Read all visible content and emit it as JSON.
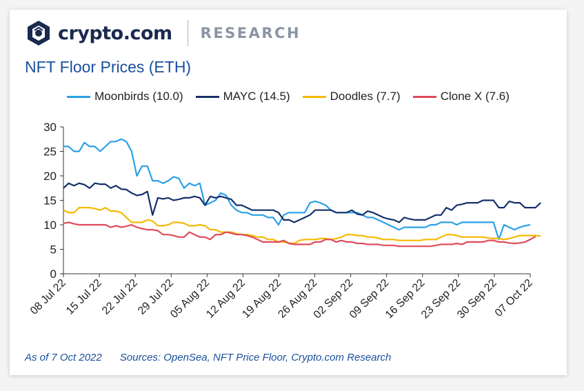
{
  "brand": {
    "name": "crypto.com",
    "division": "RESEARCH",
    "logo_icon": "lion-shield-icon"
  },
  "footer": {
    "as_of": "As of 7 Oct 2022",
    "sources": "Sources: OpenSea, NFT Price Floor, Crypto.com Research"
  },
  "chart_data": {
    "type": "line",
    "title": "NFT Floor Prices (ETH)",
    "xlabel": "",
    "ylabel": "",
    "ylim": [
      0,
      30
    ],
    "yticks": [
      0,
      5,
      10,
      15,
      20,
      25,
      30
    ],
    "grid": false,
    "legend_position": "top",
    "x_start": "08 Jul 22",
    "x_end": "07 Oct 22",
    "x_tick_labels": [
      "08 Jul 22",
      "15 Jul 22",
      "22 Jul 22",
      "29 Jul 22",
      "05 Aug 22",
      "12 Aug 22",
      "19 Aug 22",
      "26 Aug 22",
      "02 Sep 22",
      "09 Sep 22",
      "16 Sep 22",
      "23 Sep 22",
      "30 Sep 22",
      "07 Oct 22"
    ],
    "series": [
      {
        "name": "Moonbirds (10.0)",
        "color": "#2aa1e8",
        "values": [
          26,
          26,
          25,
          25,
          26.8,
          26,
          26,
          25,
          26,
          27,
          27,
          27.5,
          27,
          25,
          20,
          22,
          22,
          19,
          19,
          18.5,
          19,
          19.8,
          19.5,
          17.5,
          18.5,
          18,
          18.5,
          14,
          14.5,
          15,
          16.5,
          16,
          14,
          13,
          12.5,
          12.5,
          12,
          12,
          12,
          11.5,
          11.5,
          10,
          12,
          12.5,
          12.5,
          12.5,
          12.5,
          14.5,
          14.8,
          14.5,
          14,
          13,
          12.5,
          12.5,
          12.5,
          12.5,
          12.5,
          12,
          11.5,
          11.5,
          11,
          10.5,
          10,
          9.5,
          9,
          9.5,
          9.5,
          9.5,
          9.5,
          9.5,
          10,
          10,
          10.5,
          10.5,
          10.5,
          10,
          10.5,
          10.5,
          10.5,
          10.5,
          10.5,
          10.5,
          10.5,
          7,
          10,
          9.5,
          9,
          9.5,
          9.8,
          10
        ]
      },
      {
        "name": "MAYC (14.5)",
        "color": "#14306b",
        "values": [
          17.5,
          18.5,
          18,
          18.5,
          18.2,
          17.5,
          18.5,
          18.3,
          18.3,
          17.5,
          18,
          17.3,
          17.2,
          16.5,
          16,
          16.2,
          16.8,
          12,
          15.5,
          15.3,
          15.5,
          15,
          15.2,
          15.5,
          15.5,
          15.8,
          15.5,
          14,
          15.8,
          15.5,
          15.8,
          15.5,
          15.2,
          14,
          14,
          13.5,
          13,
          13,
          13,
          13,
          13,
          12.5,
          11,
          11,
          10.5,
          11,
          11.5,
          12,
          13,
          13,
          13,
          13,
          12.5,
          12.5,
          12.5,
          13,
          12.2,
          12,
          12.8,
          12.5,
          12,
          11.5,
          11.2,
          11,
          10.5,
          11.5,
          11.2,
          11,
          11,
          11,
          11.5,
          12,
          12,
          13.5,
          13,
          14,
          14.2,
          14.5,
          14.5,
          14.5,
          15,
          15,
          15,
          13.5,
          13.5,
          14.8,
          14.5,
          14.5,
          13.5,
          13.5,
          13.5,
          14.5
        ]
      },
      {
        "name": "Doodles (7.7)",
        "color": "#f5b800",
        "values": [
          13,
          12.5,
          12.5,
          13.5,
          13.5,
          13.5,
          13.3,
          13,
          13.5,
          12.8,
          12.8,
          12.5,
          11.5,
          10.5,
          10.5,
          10.5,
          11,
          10.8,
          9.8,
          9.8,
          10,
          10.5,
          10.5,
          10.3,
          9.8,
          9.8,
          10,
          9.8,
          9,
          9,
          8.5,
          8.5,
          8.5,
          8.2,
          8,
          8,
          7.8,
          7.5,
          7.5,
          7,
          7,
          6.5,
          6.5,
          6.3,
          6.2,
          6.8,
          7,
          7,
          7,
          7.2,
          7.2,
          7,
          7.2,
          7.5,
          8,
          8,
          7.8,
          7.8,
          7.5,
          7.5,
          7.3,
          7,
          7,
          7,
          6.8,
          6.8,
          6.8,
          6.8,
          6.8,
          7,
          7,
          7,
          7.5,
          8,
          8,
          7.8,
          7.5,
          7.5,
          7.5,
          7.5,
          7.5,
          7.3,
          7.2,
          7.2,
          7,
          7.2,
          7.5,
          7.8,
          7.8,
          7.8,
          7.8,
          7.7
        ]
      },
      {
        "name": "Clone X (7.6)",
        "color": "#e04a5a",
        "values": [
          10.3,
          10.5,
          10.2,
          10,
          10,
          10,
          10,
          10,
          10,
          9.5,
          9.8,
          9.5,
          9.7,
          10,
          9.5,
          9.2,
          9,
          9,
          8.8,
          8,
          8,
          7.8,
          7.5,
          7.5,
          8.5,
          8,
          7.5,
          7.5,
          7,
          8,
          8,
          8.5,
          8.3,
          8,
          8,
          7.8,
          7.5,
          7,
          6.5,
          6.5,
          6.5,
          6.5,
          6.8,
          6.2,
          6,
          6,
          6,
          6,
          6.5,
          6.5,
          7,
          7,
          6.5,
          6.8,
          6.5,
          6.5,
          6.2,
          6.2,
          6,
          6,
          6,
          5.8,
          5.8,
          5.8,
          5.6,
          5.6,
          5.6,
          5.6,
          5.6,
          5.6,
          5.6,
          5.8,
          6,
          6,
          6,
          6.2,
          6,
          6.5,
          6.5,
          6.5,
          6.5,
          6.8,
          6.8,
          6.5,
          6.5,
          6.3,
          6.2,
          6.3,
          6.5,
          7,
          7.6
        ]
      }
    ]
  }
}
